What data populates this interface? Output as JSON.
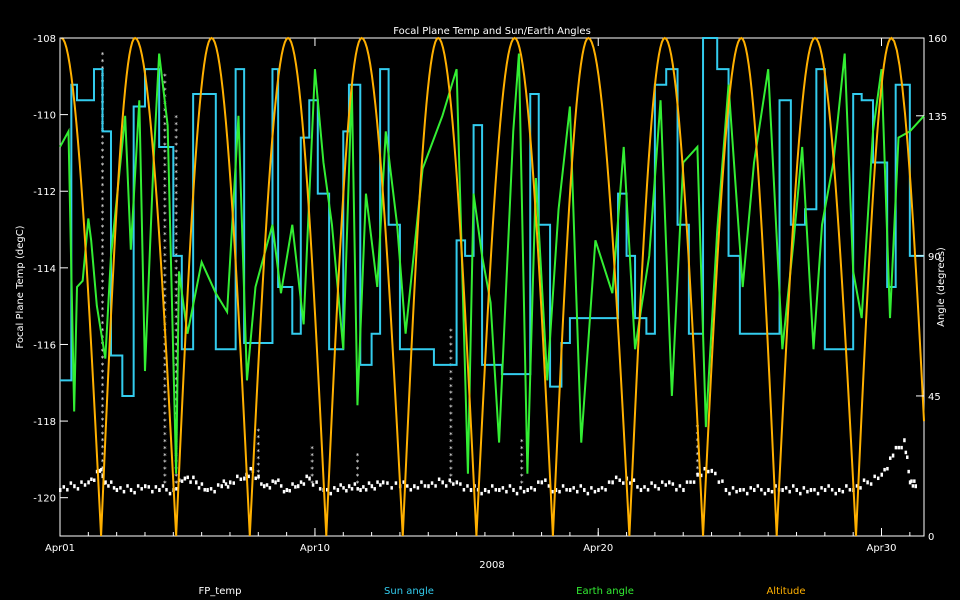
{
  "chart_data": {
    "type": "line",
    "title": "Focal Plane Temp and Sun/Earth Angles",
    "xlabel": "2008",
    "ylabel_left": "Focal Plane Temp (degC)",
    "ylabel_right": "Angle (degrees)",
    "xlim": [
      1,
      31.5
    ],
    "ylim_left": [
      -121,
      -108
    ],
    "ylim_right": [
      0,
      160
    ],
    "x_ticks": [
      {
        "value": 1,
        "label": "Apr01"
      },
      {
        "value": 10,
        "label": "Apr10"
      },
      {
        "value": 20,
        "label": "Apr20"
      },
      {
        "value": 30,
        "label": "Apr30"
      }
    ],
    "y_ticks_left": [
      -108,
      -110,
      -112,
      -114,
      -116,
      -118,
      -120
    ],
    "y_ticks_right": [
      0,
      45,
      90,
      135,
      160
    ],
    "grid": false,
    "legend_position": "bottom",
    "series": [
      {
        "name": "FP_temp",
        "axis": "left",
        "color": "#ffffff",
        "style": "markers",
        "points": [
          [
            1,
            -119.8
          ],
          [
            1.5,
            -119.7
          ],
          [
            2,
            -119.6
          ],
          [
            2.4,
            -119.3
          ],
          [
            2.6,
            -119.6
          ],
          [
            3,
            -119.8
          ],
          [
            3.5,
            -119.8
          ],
          [
            4,
            -119.7
          ],
          [
            4.5,
            -119.8
          ],
          [
            5,
            -119.8
          ],
          [
            5.4,
            -119.5
          ],
          [
            5.8,
            -119.6
          ],
          [
            6.2,
            -119.8
          ],
          [
            6.7,
            -119.7
          ],
          [
            7,
            -119.6
          ],
          [
            7.5,
            -119.5
          ],
          [
            7.8,
            -119.3
          ],
          [
            8.2,
            -119.7
          ],
          [
            8.6,
            -119.6
          ],
          [
            9,
            -119.8
          ],
          [
            9.4,
            -119.7
          ],
          [
            9.8,
            -119.5
          ],
          [
            10.3,
            -119.8
          ],
          [
            10.8,
            -119.8
          ],
          [
            11.2,
            -119.7
          ],
          [
            11.6,
            -119.8
          ],
          [
            12,
            -119.7
          ],
          [
            12.4,
            -119.6
          ],
          [
            13,
            -119.7
          ],
          [
            13.5,
            -119.7
          ],
          [
            14,
            -119.7
          ],
          [
            14.5,
            -119.6
          ],
          [
            15,
            -119.6
          ],
          [
            15.5,
            -119.8
          ],
          [
            16,
            -119.8
          ],
          [
            16.5,
            -119.8
          ],
          [
            17,
            -119.8
          ],
          [
            17.5,
            -119.8
          ],
          [
            18,
            -119.6
          ],
          [
            18.5,
            -119.8
          ],
          [
            19,
            -119.8
          ],
          [
            19.5,
            -119.8
          ],
          [
            20,
            -119.8
          ],
          [
            20.5,
            -119.6
          ],
          [
            21,
            -119.5
          ],
          [
            21.5,
            -119.8
          ],
          [
            22,
            -119.7
          ],
          [
            22.5,
            -119.6
          ],
          [
            23,
            -119.8
          ],
          [
            23.5,
            -119.4
          ],
          [
            24,
            -119.3
          ],
          [
            24.5,
            -119.8
          ],
          [
            25,
            -119.8
          ],
          [
            25.5,
            -119.8
          ],
          [
            26,
            -119.8
          ],
          [
            26.5,
            -119.8
          ],
          [
            27,
            -119.8
          ],
          [
            27.5,
            -119.8
          ],
          [
            28,
            -119.8
          ],
          [
            28.5,
            -119.8
          ],
          [
            29,
            -119.8
          ],
          [
            29.5,
            -119.6
          ],
          [
            30,
            -119.4
          ],
          [
            30.4,
            -118.9
          ],
          [
            30.8,
            -118.5
          ],
          [
            31,
            -119.6
          ],
          [
            31.2,
            -119.7
          ]
        ],
        "spikes": [
          [
            2.5,
            -108.3,
            -119.4
          ],
          [
            4.7,
            -108.8,
            -119.6
          ],
          [
            5.1,
            -110,
            -119.6
          ],
          [
            8,
            -118.2,
            -119.5
          ],
          [
            9.9,
            -118.6,
            -119.6
          ],
          [
            11.5,
            -118.7,
            -119.6
          ],
          [
            14.8,
            -115.5,
            -119.6
          ],
          [
            17.3,
            -118.5,
            -119.6
          ],
          [
            23.5,
            -118.1,
            -119.4
          ]
        ]
      },
      {
        "name": "Sun angle",
        "axis": "right",
        "color": "#33ccee",
        "style": "line",
        "points": [
          [
            1,
            50
          ],
          [
            1.4,
            50
          ],
          [
            1.4,
            145
          ],
          [
            1.6,
            145
          ],
          [
            1.6,
            140
          ],
          [
            2.2,
            140
          ],
          [
            2.2,
            150
          ],
          [
            2.5,
            150
          ],
          [
            2.5,
            130
          ],
          [
            2.8,
            130
          ],
          [
            2.8,
            58
          ],
          [
            3.2,
            58
          ],
          [
            3.2,
            45
          ],
          [
            3.6,
            45
          ],
          [
            3.6,
            138
          ],
          [
            4,
            138
          ],
          [
            4,
            150
          ],
          [
            4.5,
            150
          ],
          [
            4.5,
            125
          ],
          [
            5,
            125
          ],
          [
            5,
            90
          ],
          [
            5.3,
            90
          ],
          [
            5.3,
            60
          ],
          [
            5.7,
            60
          ],
          [
            5.7,
            142
          ],
          [
            6.2,
            142
          ],
          [
            6.2,
            142
          ],
          [
            6.5,
            142
          ],
          [
            6.5,
            60
          ],
          [
            7.2,
            60
          ],
          [
            7.2,
            150
          ],
          [
            7.5,
            150
          ],
          [
            7.5,
            62
          ],
          [
            8.5,
            62
          ],
          [
            8.5,
            150
          ],
          [
            8.7,
            150
          ],
          [
            8.7,
            80
          ],
          [
            9.2,
            80
          ],
          [
            9.2,
            65
          ],
          [
            9.5,
            65
          ],
          [
            9.5,
            128
          ],
          [
            9.8,
            128
          ],
          [
            9.8,
            140
          ],
          [
            10.1,
            140
          ],
          [
            10.1,
            110
          ],
          [
            10.5,
            110
          ],
          [
            10.5,
            60
          ],
          [
            11,
            60
          ],
          [
            11,
            130
          ],
          [
            11.2,
            130
          ],
          [
            11.2,
            145
          ],
          [
            11.6,
            145
          ],
          [
            11.6,
            55
          ],
          [
            12,
            55
          ],
          [
            12,
            65
          ],
          [
            12.3,
            65
          ],
          [
            12.3,
            150
          ],
          [
            12.6,
            150
          ],
          [
            12.6,
            100
          ],
          [
            13,
            100
          ],
          [
            13,
            60
          ],
          [
            14.2,
            60
          ],
          [
            14.2,
            55
          ],
          [
            15,
            55
          ],
          [
            15,
            95
          ],
          [
            15.3,
            95
          ],
          [
            15.3,
            90
          ],
          [
            15.6,
            90
          ],
          [
            15.6,
            132
          ],
          [
            15.9,
            132
          ],
          [
            15.9,
            55
          ],
          [
            16.6,
            55
          ],
          [
            16.6,
            52
          ],
          [
            17.6,
            52
          ],
          [
            17.6,
            142
          ],
          [
            17.9,
            142
          ],
          [
            17.9,
            100
          ],
          [
            18.3,
            100
          ],
          [
            18.3,
            48
          ],
          [
            18.7,
            48
          ],
          [
            18.7,
            62
          ],
          [
            19,
            62
          ],
          [
            19,
            70
          ],
          [
            20.7,
            70
          ],
          [
            20.7,
            110
          ],
          [
            21,
            110
          ],
          [
            21,
            90
          ],
          [
            21.3,
            90
          ],
          [
            21.3,
            70
          ],
          [
            21.7,
            70
          ],
          [
            21.7,
            65
          ],
          [
            22,
            65
          ],
          [
            22,
            145
          ],
          [
            22.4,
            145
          ],
          [
            22.4,
            150
          ],
          [
            22.8,
            150
          ],
          [
            22.8,
            100
          ],
          [
            23.2,
            100
          ],
          [
            23.2,
            65
          ],
          [
            23.7,
            65
          ],
          [
            23.7,
            160
          ],
          [
            24.2,
            160
          ],
          [
            24.2,
            150
          ],
          [
            24.6,
            150
          ],
          [
            24.6,
            90
          ],
          [
            25,
            90
          ],
          [
            25,
            65
          ],
          [
            26,
            65
          ],
          [
            26,
            65
          ],
          [
            26.4,
            65
          ],
          [
            26.4,
            140
          ],
          [
            26.8,
            140
          ],
          [
            26.8,
            100
          ],
          [
            27.3,
            100
          ],
          [
            27.3,
            105
          ],
          [
            27.7,
            105
          ],
          [
            27.7,
            150
          ],
          [
            28,
            150
          ],
          [
            28,
            60
          ],
          [
            29,
            60
          ],
          [
            29,
            142
          ],
          [
            29.3,
            142
          ],
          [
            29.3,
            140
          ],
          [
            29.7,
            140
          ],
          [
            29.7,
            120
          ],
          [
            30.2,
            120
          ],
          [
            30.2,
            80
          ],
          [
            30.5,
            80
          ],
          [
            30.5,
            145
          ],
          [
            31,
            145
          ],
          [
            31,
            90
          ],
          [
            31.5,
            90
          ]
        ]
      },
      {
        "name": "Earth angle",
        "axis": "right",
        "color": "#33ee33",
        "style": "line",
        "points": [
          [
            1,
            125
          ],
          [
            1.3,
            130
          ],
          [
            1.5,
            40
          ],
          [
            1.6,
            80
          ],
          [
            1.8,
            82
          ],
          [
            2,
            102
          ],
          [
            2.1,
            95
          ],
          [
            2.3,
            74
          ],
          [
            2.6,
            57
          ],
          [
            2.8,
            90
          ],
          [
            3.3,
            135
          ],
          [
            3.5,
            92
          ],
          [
            3.8,
            140
          ],
          [
            4,
            53
          ],
          [
            4.3,
            120
          ],
          [
            4.5,
            155
          ],
          [
            4.8,
            132
          ],
          [
            5.1,
            20
          ],
          [
            5.2,
            85
          ],
          [
            5.5,
            65
          ],
          [
            6,
            88
          ],
          [
            6.5,
            78
          ],
          [
            6.9,
            72
          ],
          [
            7.3,
            135
          ],
          [
            7.6,
            50
          ],
          [
            7.9,
            80
          ],
          [
            8.5,
            100
          ],
          [
            8.8,
            78
          ],
          [
            9.2,
            100
          ],
          [
            9.6,
            68
          ],
          [
            10,
            150
          ],
          [
            10.3,
            120
          ],
          [
            10.6,
            100
          ],
          [
            11,
            60
          ],
          [
            11.3,
            145
          ],
          [
            11.5,
            42
          ],
          [
            11.8,
            110
          ],
          [
            12.2,
            80
          ],
          [
            12.5,
            130
          ],
          [
            12.9,
            100
          ],
          [
            13.2,
            65
          ],
          [
            13.8,
            118
          ],
          [
            14.5,
            135
          ],
          [
            15,
            150
          ],
          [
            15.4,
            20
          ],
          [
            15.6,
            110
          ],
          [
            15.9,
            90
          ],
          [
            16.2,
            75
          ],
          [
            16.5,
            30
          ],
          [
            17,
            130
          ],
          [
            17.2,
            155
          ],
          [
            17.5,
            20
          ],
          [
            17.8,
            115
          ],
          [
            18.2,
            50
          ],
          [
            18.6,
            105
          ],
          [
            19,
            138
          ],
          [
            19.4,
            30
          ],
          [
            19.9,
            95
          ],
          [
            20.5,
            78
          ],
          [
            20.9,
            125
          ],
          [
            21.3,
            60
          ],
          [
            21.8,
            90
          ],
          [
            22.2,
            140
          ],
          [
            22.6,
            45
          ],
          [
            23,
            120
          ],
          [
            23.5,
            125
          ],
          [
            23.8,
            35
          ],
          [
            24.2,
            98
          ],
          [
            24.6,
            145
          ],
          [
            25.1,
            80
          ],
          [
            25.5,
            120
          ],
          [
            26,
            150
          ],
          [
            26.5,
            60
          ],
          [
            26.9,
            95
          ],
          [
            27.2,
            125
          ],
          [
            27.6,
            60
          ],
          [
            27.9,
            100
          ],
          [
            28.3,
            120
          ],
          [
            28.7,
            155
          ],
          [
            29,
            85
          ],
          [
            29.3,
            70
          ],
          [
            29.7,
            130
          ],
          [
            30,
            150
          ],
          [
            30.3,
            70
          ],
          [
            30.6,
            128
          ],
          [
            31,
            130
          ],
          [
            31.5,
            135
          ]
        ]
      },
      {
        "name": "Altitude",
        "axis": "right",
        "color": "#ffb000",
        "style": "line",
        "peaks": [
          1.05,
          3.65,
          6.35,
          9.05,
          11.65,
          14.35,
          17.05,
          19.65,
          22.35,
          25.05,
          27.65,
          30.35
        ],
        "minima": [
          2.45,
          5.1,
          7.7,
          10.4,
          13.1,
          15.7,
          18.4,
          21.1,
          23.7,
          26.3,
          29.1
        ],
        "peak_value": 160,
        "min_value": 0
      }
    ]
  }
}
